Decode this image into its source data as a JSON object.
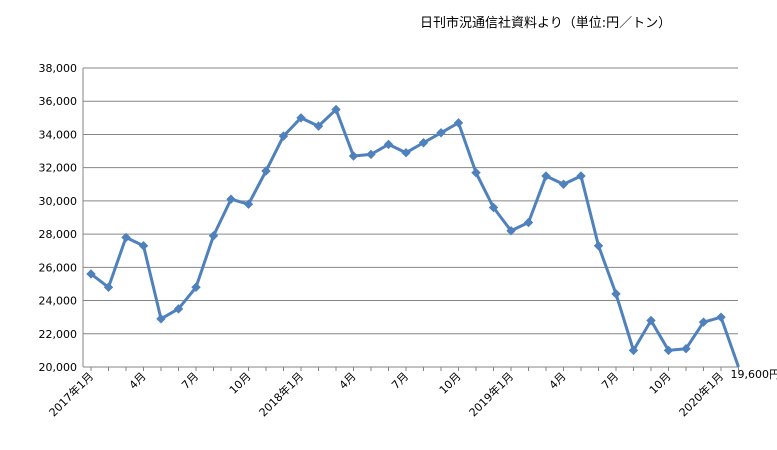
{
  "header": {
    "source_note": "日刊市況通信社資料より（単位:円／トン）"
  },
  "chart_data": {
    "type": "line",
    "ylim": [
      20000,
      38000
    ],
    "y_ticks": [
      "20,000",
      "22,000",
      "24,000",
      "26,000",
      "28,000",
      "30,000",
      "32,000",
      "34,000",
      "36,000",
      "38,000"
    ],
    "x_tick_labels": [
      {
        "index": 0,
        "label": "2017年1月"
      },
      {
        "index": 3,
        "label": "4月"
      },
      {
        "index": 6,
        "label": "7月"
      },
      {
        "index": 9,
        "label": "10月"
      },
      {
        "index": 12,
        "label": "2018年1月"
      },
      {
        "index": 15,
        "label": "4月"
      },
      {
        "index": 18,
        "label": "7月"
      },
      {
        "index": 21,
        "label": "10月"
      },
      {
        "index": 24,
        "label": "2019年1月"
      },
      {
        "index": 27,
        "label": "4月"
      },
      {
        "index": 30,
        "label": "7月"
      },
      {
        "index": 33,
        "label": "10月"
      },
      {
        "index": 36,
        "label": "2020年1月"
      }
    ],
    "grid": true,
    "legend": "none",
    "series_color": "#4f81bd",
    "end_label": "19,600円",
    "values": [
      25600,
      24800,
      27800,
      27300,
      22900,
      23500,
      24800,
      27900,
      30100,
      29800,
      31800,
      33900,
      35000,
      34500,
      35500,
      32700,
      32800,
      33400,
      32900,
      33500,
      34100,
      34700,
      31700,
      29600,
      28200,
      28700,
      31500,
      31000,
      31500,
      27300,
      24400,
      21000,
      22800,
      21000,
      21100,
      22700,
      23000,
      19600
    ]
  }
}
